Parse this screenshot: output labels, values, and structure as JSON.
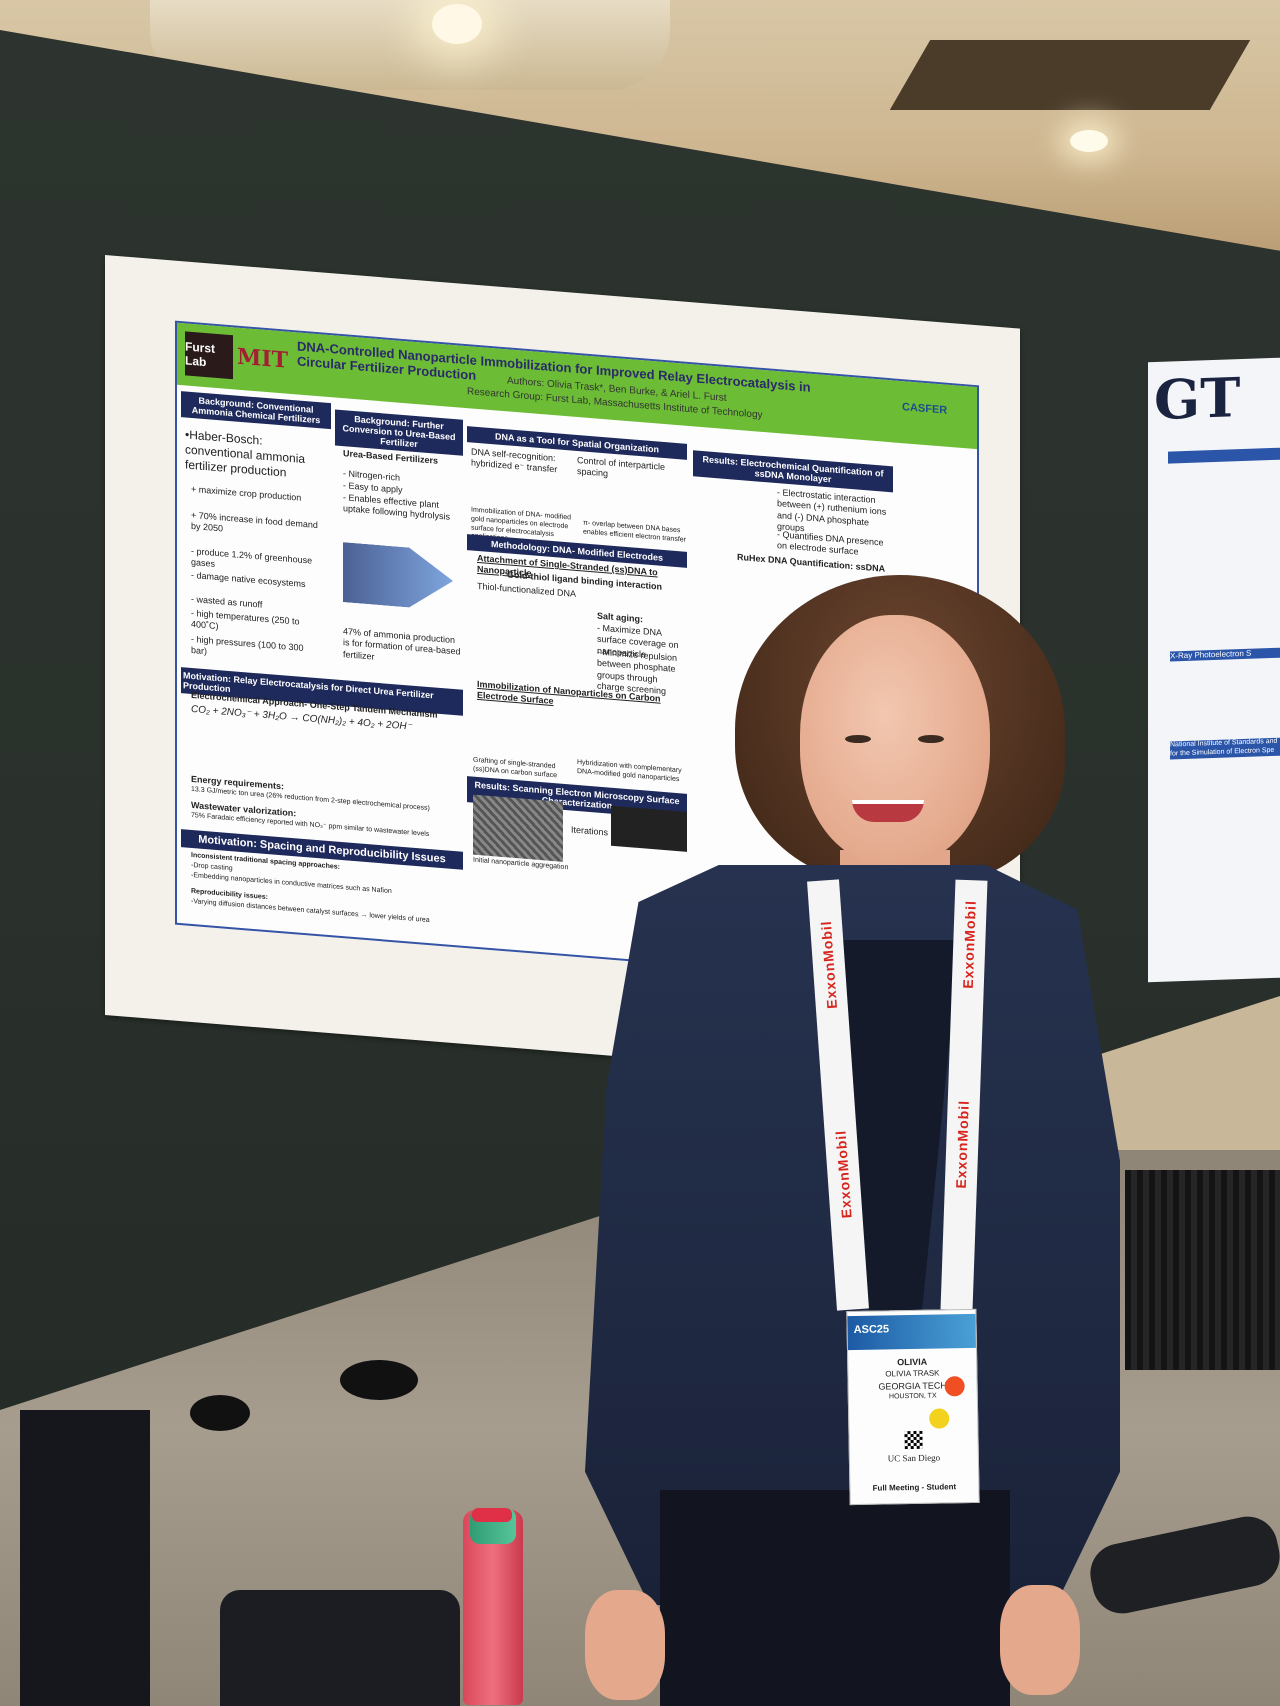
{
  "poster": {
    "title": "DNA-Controlled Nanoparticle Immobilization for Improved Relay Electrocatalysis in Circular Fertilizer Production",
    "authors": "Authors: Olivia Trask*, Ben Burke, & Ariel L. Furst",
    "group": "Research Group: Furst Lab, Massachusetts Institute of Technology",
    "logo_lab": "Furst Lab",
    "logo_mit": "MIT",
    "logo_casfer": "CASFER",
    "sections": {
      "bg1_head": "Background: Conventional Ammonia Chemical Fertilizers",
      "bg1_lead": "•Haber-Bosch: conventional ammonia fertilizer production",
      "bg1_b1": "+ maximize crop production",
      "bg1_b2": "+ 70% increase in food demand by 2050",
      "bg1_b3": "- produce 1.2% of greenhouse gases",
      "bg1_b4": "- damage native ecosystems",
      "bg1_b5": "- wasted as runoff",
      "bg1_b6": "- high temperatures (250 to 400˚C)",
      "bg1_b7": "- high pressures (100 to 300 bar)",
      "bg2_head": "Background: Further Conversion to Urea-Based Fertilizer",
      "bg2_sub": "Urea-Based Fertilizers",
      "bg2_b1": "- Nitrogen-rich",
      "bg2_b2": "- Easy to apply",
      "bg2_b3": "- Enables effective plant uptake following hydrolysis",
      "bg2_note": "47% of ammonia production is for formation of urea-based fertilizer",
      "dna_head": "DNA as a Tool for Spatial Organization",
      "dna_l1": "DNA self-recognition: hybridized e⁻ transfer",
      "dna_l2": "Control of interparticle spacing",
      "dna_l3": "Immobilization of DNA- modified gold nanoparticles on electrode surface for electrocatalysis applications",
      "dna_l4": "π- overlap between DNA bases enables efficient electron transfer",
      "res_head": "Results: Electrochemical Quantification of ssDNA Monolayer",
      "res_l1": "- Electrostatic interaction between (+) ruthenium ions and (-) DNA phosphate groups",
      "res_l2": "- Quantifies DNA presence on electrode surface",
      "res_l3": "RuHex DNA Quantification: ssDNA",
      "meth_head": "Methodology: DNA- Modified Electrodes",
      "meth_l1": "Attachment of Single-Stranded (ss)DNA to Nanoparticle",
      "meth_l2": "Gold-thiol ligand binding interaction",
      "meth_l3": "Thiol-functionalized DNA",
      "meth_l4": "Salt aging:",
      "meth_l5": "- Maximize DNA surface coverage on nanoparticle",
      "meth_l6": "- Minimize repulsion between phosphate groups through charge screening",
      "meth_l7": "Immobilization of Nanoparticles on Carbon Electrode Surface",
      "meth_l8": "Grafting of single-stranded (ss)DNA on carbon surface",
      "meth_l9": "Hybridization with complementary DNA-modified gold nanoparticles",
      "sem_head": "Results: Scanning Electron Microscopy Surface Characterization",
      "sem_l1": "Iterations",
      "sem_l2": "Initial nanoparticle aggregation",
      "mot1_head": "Motivation: Relay Electrocatalysis for Direct Urea Fertilizer Production",
      "mot1_sub": "Electrochemical Approach- One-Step Tandem Mechanism",
      "mot1_eq": "CO₂ + 2NO₃⁻ + 3H₂O → CO(NH₂)₂ + 4O₂ + 2OH⁻",
      "mot1_l1": "Energy requirements:",
      "mot1_l2": "13.3 GJ/metric ton urea (26% reduction from 2-step electrochemical process)",
      "mot1_l3": "Wastewater valorization:",
      "mot1_l4": "75% Faradaic efficiency reported with NO₃⁻ ppm similar to wastewater levels",
      "mot2_head": "Motivation: Spacing and Reproducibility Issues",
      "mot2_l1": "Inconsistent traditional spacing approaches:",
      "mot2_l2": "-Drop casting",
      "mot2_l3": "-Embedding nanoparticles in conductive matrices such as Nafion",
      "mot2_l4": "Reproducibility issues:",
      "mot2_l5": "-Varying diffusion distances between catalyst surfaces → lower yields of urea"
    }
  },
  "poster2": {
    "logo": "GT",
    "head1": "X-Ray Photoelectron S",
    "head2": "National Institute of Standards and for the Simulation of Electron Spe"
  },
  "lanyard": {
    "text": "ExxonMobil"
  },
  "badge": {
    "event": "ASC25",
    "first_name": "OLIVIA",
    "full_name": "OLIVIA TRASK",
    "org": "GEORGIA TECH",
    "city": "HOUSTON, TX",
    "sponsor": "UC San Diego",
    "type": "Full Meeting - Student",
    "dot_colors": [
      "#f04e23",
      "#f2d21c"
    ]
  }
}
